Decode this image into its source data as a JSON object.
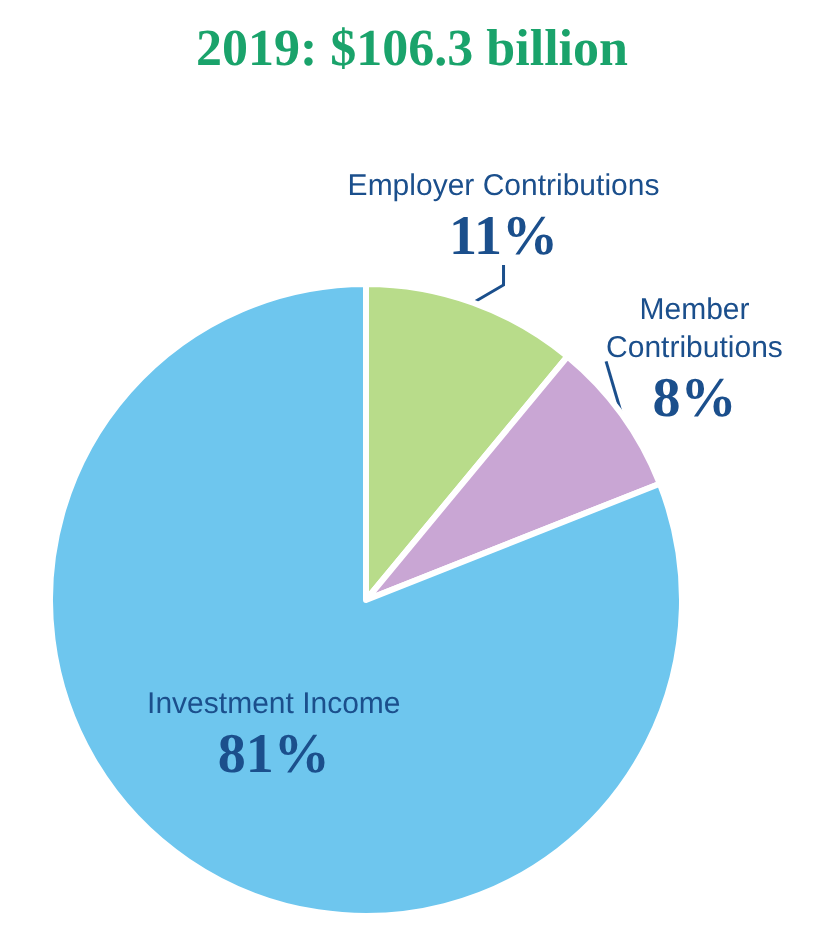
{
  "chart_data": {
    "type": "pie",
    "title": "2019: $106.3 billion",
    "categories": [
      "Employer Contributions",
      "Member Contributions",
      "Investment Income"
    ],
    "values": [
      11,
      8,
      81
    ],
    "value_labels": [
      "11%",
      "8%",
      "81%"
    ],
    "colors": [
      "#b8dc8a",
      "#c9a6d4",
      "#6ec6ee"
    ],
    "legend": false
  }
}
